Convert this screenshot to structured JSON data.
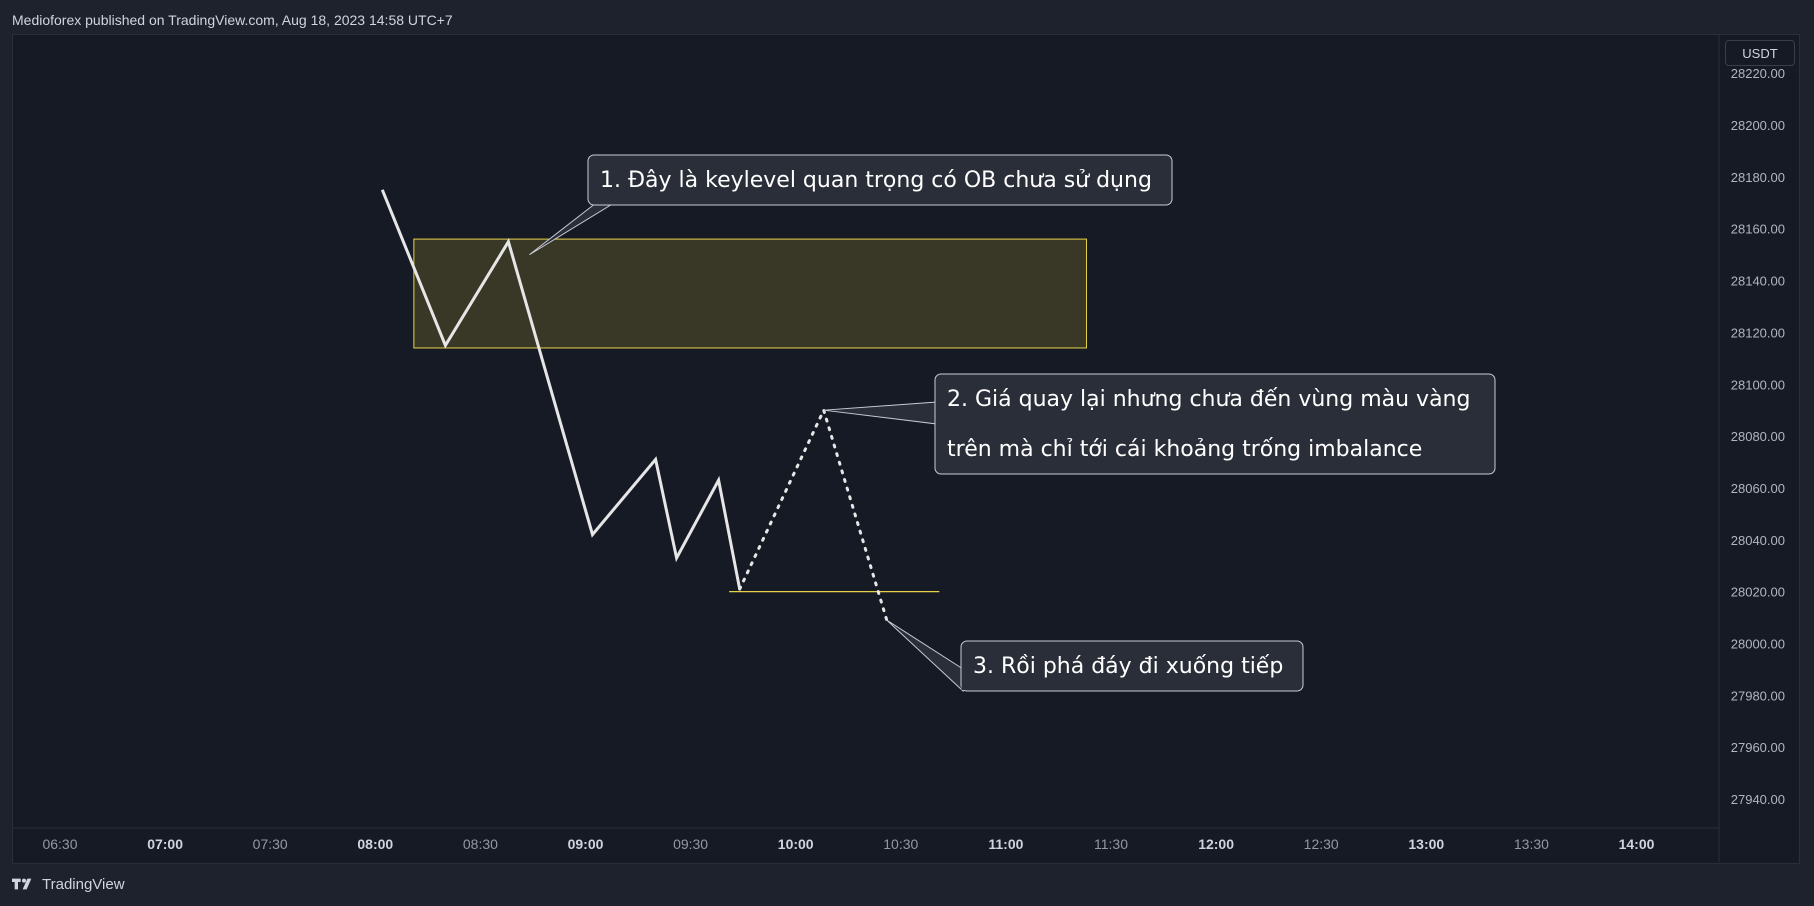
{
  "header": {
    "publish_line": "Medioforex published on TradingView.com, Aug 18, 2023 14:58 UTC+7"
  },
  "footer": {
    "brand": "TradingView"
  },
  "axis": {
    "currency": "USDT"
  },
  "colors": {
    "background": "#161a25",
    "price_line": "#e6e6e6",
    "zone_fill": "#3d3c27",
    "zone_border": "#e8d24a",
    "level_line": "#e8d24a",
    "callout_bg": "#2a2e39",
    "callout_border": "#c9ccd4"
  },
  "chart_data": {
    "type": "line",
    "x_ticks": [
      {
        "t": "06:30",
        "bold": false
      },
      {
        "t": "07:00",
        "bold": true
      },
      {
        "t": "07:30",
        "bold": false
      },
      {
        "t": "08:00",
        "bold": true
      },
      {
        "t": "08:30",
        "bold": false
      },
      {
        "t": "09:00",
        "bold": true
      },
      {
        "t": "09:30",
        "bold": false
      },
      {
        "t": "10:00",
        "bold": true
      },
      {
        "t": "10:30",
        "bold": false
      },
      {
        "t": "11:00",
        "bold": true
      },
      {
        "t": "11:30",
        "bold": false
      },
      {
        "t": "12:00",
        "bold": true
      },
      {
        "t": "12:30",
        "bold": false
      },
      {
        "t": "13:00",
        "bold": true
      },
      {
        "t": "13:30",
        "bold": false
      },
      {
        "t": "14:00",
        "bold": true
      }
    ],
    "y_ticks": [
      "28220.00",
      "28200.00",
      "28180.00",
      "28160.00",
      "28140.00",
      "28120.00",
      "28100.00",
      "28080.00",
      "28060.00",
      "28040.00",
      "28020.00",
      "28000.00",
      "27980.00",
      "27960.00",
      "27940.00"
    ],
    "ylim": [
      27935,
      28222
    ],
    "solid_path": [
      {
        "x": "08:06",
        "y": 28175
      },
      {
        "x": "08:24",
        "y": 28115
      },
      {
        "x": "08:42",
        "y": 28155
      },
      {
        "x": "09:06",
        "y": 28042
      },
      {
        "x": "09:24",
        "y": 28071
      },
      {
        "x": "09:30",
        "y": 28033
      },
      {
        "x": "09:42",
        "y": 28063
      },
      {
        "x": "09:48",
        "y": 28021
      }
    ],
    "dotted_path": [
      {
        "x": "09:48",
        "y": 28021
      },
      {
        "x": "10:12",
        "y": 28090
      },
      {
        "x": "10:30",
        "y": 28009
      }
    ],
    "zone": {
      "x_start": "08:15",
      "x_end": "11:27",
      "y_low": 28114,
      "y_high": 28156
    },
    "level": {
      "x_start": "09:45",
      "x_end": "10:45",
      "y": 28020
    },
    "annotations": [
      {
        "lines": [
          "1. Đây là keylevel quan trọng có OB chưa sử dụng"
        ],
        "anchor_x": "08:48",
        "anchor_y": 28150
      },
      {
        "lines": [
          "2. Giá quay lại nhưng chưa đến vùng màu vàng",
          "trên mà chỉ tới cái khoảng trống imbalance"
        ],
        "anchor_x": "10:12",
        "anchor_y": 28090
      },
      {
        "lines": [
          "3. Rồi phá đáy đi xuống tiếp"
        ],
        "anchor_x": "10:30",
        "anchor_y": 28009
      }
    ]
  }
}
